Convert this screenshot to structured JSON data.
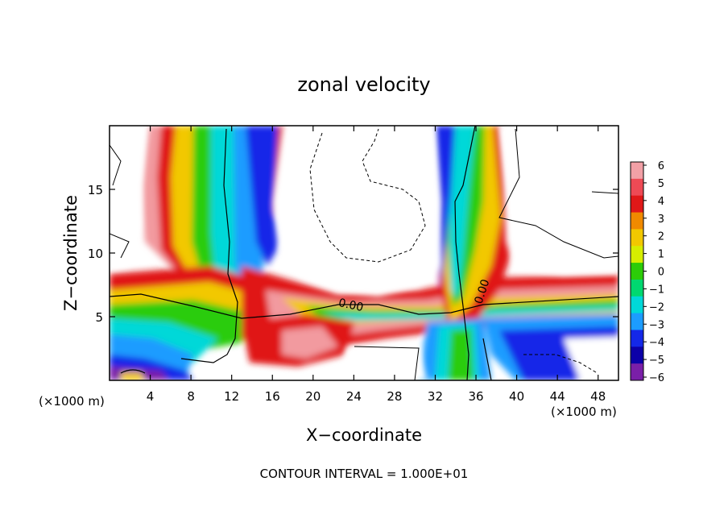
{
  "chart_data": {
    "type": "heatmap",
    "title": "zonal velocity",
    "xlabel": "X−coordinate",
    "ylabel": "Z−coordinate",
    "x_unit_left": "(×1000 m)",
    "x_unit_right": "(×1000 m)",
    "xlim": [
      0,
      50
    ],
    "ylim": [
      0,
      20
    ],
    "x_ticks": [
      "4",
      "8",
      "12",
      "16",
      "20",
      "24",
      "28",
      "32",
      "36",
      "40",
      "44",
      "48"
    ],
    "x_tick_values": [
      4,
      8,
      12,
      16,
      20,
      24,
      28,
      32,
      36,
      40,
      44,
      48
    ],
    "y_ticks": [
      "5",
      "10",
      "15"
    ],
    "y_tick_values": [
      5,
      10,
      15
    ],
    "contour_labels": [
      "0.00",
      "0.00"
    ],
    "footer": "CONTOUR INTERVAL = 1.000E+01",
    "colorbar": {
      "labels": [
        "6",
        "5",
        "4",
        "3",
        "2",
        "1",
        "0",
        "−1",
        "−2",
        "−3",
        "−4",
        "−5",
        "−6"
      ],
      "values": [
        6,
        5,
        4,
        3,
        2,
        1,
        0,
        -1,
        -2,
        -3,
        -4,
        -5,
        -6
      ],
      "colors": [
        "#f2a0a6",
        "#ee4a55",
        "#e01818",
        "#f08a00",
        "#f2c800",
        "#d6ee00",
        "#2ccc08",
        "#00d870",
        "#00d8d8",
        "#1c9cff",
        "#1428e8",
        "#0c00a8",
        "#7a1fa8"
      ]
    }
  }
}
